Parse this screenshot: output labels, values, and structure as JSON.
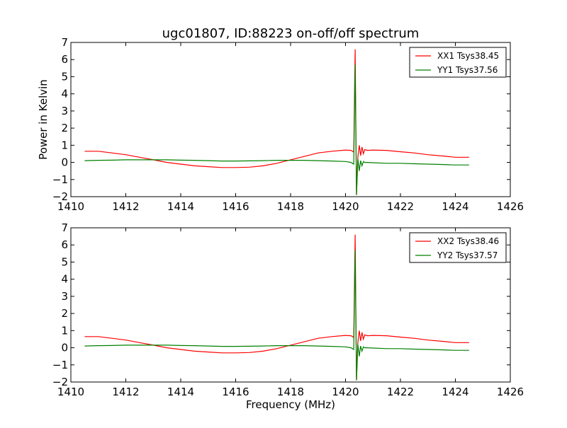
{
  "chart_title": "ugc01807, ID:88223 on-off/off spectrum",
  "chart_data": [
    {
      "type": "line",
      "title": "ugc01807, ID:88223 on-off/off spectrum",
      "xlabel": "",
      "ylabel": "Power in Kelvin",
      "xlim": [
        1410,
        1426
      ],
      "ylim": [
        -2,
        7
      ],
      "xticks": [
        "1410",
        "1412",
        "1414",
        "1416",
        "1418",
        "1420",
        "1422",
        "1424",
        "1426"
      ],
      "yticks": [
        "−2",
        "−1",
        "0",
        "1",
        "2",
        "3",
        "4",
        "5",
        "6",
        "7"
      ],
      "xtick_values": [
        1410,
        1412,
        1414,
        1416,
        1418,
        1420,
        1422,
        1424,
        1426
      ],
      "ytick_values": [
        -2,
        -1,
        0,
        1,
        2,
        3,
        4,
        5,
        6,
        7
      ],
      "legend_position": "top-right",
      "series": [
        {
          "name": "XX1 Tsys38.45",
          "color": "#ff0000",
          "x": [
            1410.5,
            1411.0,
            1411.5,
            1412.0,
            1412.5,
            1413.0,
            1413.5,
            1414.0,
            1414.5,
            1415.0,
            1415.5,
            1416.0,
            1416.5,
            1417.0,
            1417.5,
            1418.0,
            1418.5,
            1419.0,
            1419.5,
            1420.0,
            1420.2,
            1420.3,
            1420.35,
            1420.4,
            1420.45,
            1420.5,
            1420.55,
            1420.6,
            1420.65,
            1420.7,
            1420.8,
            1421.0,
            1421.5,
            1422.0,
            1422.5,
            1423.0,
            1423.5,
            1424.0,
            1424.5
          ],
          "y": [
            0.65,
            0.65,
            0.55,
            0.45,
            0.3,
            0.15,
            0.0,
            -0.1,
            -0.2,
            -0.25,
            -0.3,
            -0.3,
            -0.28,
            -0.2,
            -0.05,
            0.15,
            0.35,
            0.55,
            0.65,
            0.72,
            0.7,
            0.6,
            6.6,
            -1.9,
            0.3,
            1.0,
            0.4,
            0.9,
            0.5,
            0.75,
            0.7,
            0.72,
            0.7,
            0.62,
            0.55,
            0.45,
            0.38,
            0.3,
            0.3
          ]
        },
        {
          "name": "YY1 Tsys37.56",
          "color": "#008000",
          "x": [
            1410.5,
            1411.0,
            1411.5,
            1412.0,
            1412.5,
            1413.0,
            1413.5,
            1414.0,
            1414.5,
            1415.0,
            1415.5,
            1416.0,
            1416.5,
            1417.0,
            1417.5,
            1418.0,
            1418.5,
            1419.0,
            1419.5,
            1420.0,
            1420.2,
            1420.3,
            1420.35,
            1420.4,
            1420.45,
            1420.5,
            1420.55,
            1420.6,
            1420.65,
            1420.7,
            1420.8,
            1421.0,
            1421.5,
            1422.0,
            1422.5,
            1423.0,
            1423.5,
            1424.0,
            1424.5
          ],
          "y": [
            0.1,
            0.12,
            0.13,
            0.15,
            0.15,
            0.15,
            0.15,
            0.13,
            0.12,
            0.1,
            0.08,
            0.08,
            0.09,
            0.1,
            0.12,
            0.12,
            0.12,
            0.1,
            0.08,
            0.05,
            0.0,
            -0.1,
            5.7,
            -1.9,
            0.2,
            -0.5,
            0.1,
            -0.2,
            0.05,
            0.0,
            0.0,
            -0.02,
            -0.05,
            -0.05,
            -0.08,
            -0.1,
            -0.12,
            -0.15,
            -0.15
          ]
        }
      ]
    },
    {
      "type": "line",
      "title": "",
      "xlabel": "Frequency (MHz)",
      "ylabel": "",
      "xlim": [
        1410,
        1426
      ],
      "ylim": [
        -2,
        7
      ],
      "xticks": [
        "1410",
        "1412",
        "1414",
        "1416",
        "1418",
        "1420",
        "1422",
        "1424",
        "1426"
      ],
      "yticks": [
        "−2",
        "−1",
        "0",
        "1",
        "2",
        "3",
        "4",
        "5",
        "6",
        "7"
      ],
      "xtick_values": [
        1410,
        1412,
        1414,
        1416,
        1418,
        1420,
        1422,
        1424,
        1426
      ],
      "ytick_values": [
        -2,
        -1,
        0,
        1,
        2,
        3,
        4,
        5,
        6,
        7
      ],
      "legend_position": "top-right",
      "series": [
        {
          "name": "XX2 Tsys38.46",
          "color": "#ff0000",
          "x": [
            1410.5,
            1411.0,
            1411.5,
            1412.0,
            1412.5,
            1413.0,
            1413.5,
            1414.0,
            1414.5,
            1415.0,
            1415.5,
            1416.0,
            1416.5,
            1417.0,
            1417.5,
            1418.0,
            1418.5,
            1419.0,
            1419.5,
            1420.0,
            1420.2,
            1420.3,
            1420.35,
            1420.4,
            1420.45,
            1420.5,
            1420.55,
            1420.6,
            1420.65,
            1420.7,
            1420.8,
            1421.0,
            1421.5,
            1422.0,
            1422.5,
            1423.0,
            1423.5,
            1424.0,
            1424.5
          ],
          "y": [
            0.65,
            0.65,
            0.55,
            0.45,
            0.3,
            0.15,
            0.0,
            -0.1,
            -0.2,
            -0.25,
            -0.3,
            -0.3,
            -0.28,
            -0.2,
            -0.05,
            0.15,
            0.35,
            0.55,
            0.65,
            0.72,
            0.7,
            0.6,
            6.6,
            -1.9,
            0.3,
            1.0,
            0.4,
            0.9,
            0.5,
            0.75,
            0.7,
            0.72,
            0.7,
            0.62,
            0.55,
            0.45,
            0.38,
            0.3,
            0.3
          ]
        },
        {
          "name": "YY2 Tsys37.57",
          "color": "#008000",
          "x": [
            1410.5,
            1411.0,
            1411.5,
            1412.0,
            1412.5,
            1413.0,
            1413.5,
            1414.0,
            1414.5,
            1415.0,
            1415.5,
            1416.0,
            1416.5,
            1417.0,
            1417.5,
            1418.0,
            1418.5,
            1419.0,
            1419.5,
            1420.0,
            1420.2,
            1420.3,
            1420.35,
            1420.4,
            1420.45,
            1420.5,
            1420.55,
            1420.6,
            1420.65,
            1420.7,
            1420.8,
            1421.0,
            1421.5,
            1422.0,
            1422.5,
            1423.0,
            1423.5,
            1424.0,
            1424.5
          ],
          "y": [
            0.1,
            0.12,
            0.13,
            0.15,
            0.15,
            0.15,
            0.15,
            0.13,
            0.12,
            0.1,
            0.08,
            0.08,
            0.09,
            0.1,
            0.12,
            0.12,
            0.12,
            0.1,
            0.08,
            0.05,
            0.0,
            -0.1,
            5.7,
            -1.9,
            0.2,
            -0.5,
            0.1,
            -0.2,
            0.05,
            0.0,
            0.0,
            -0.02,
            -0.05,
            -0.05,
            -0.08,
            -0.1,
            -0.12,
            -0.15,
            -0.15
          ]
        }
      ]
    }
  ]
}
